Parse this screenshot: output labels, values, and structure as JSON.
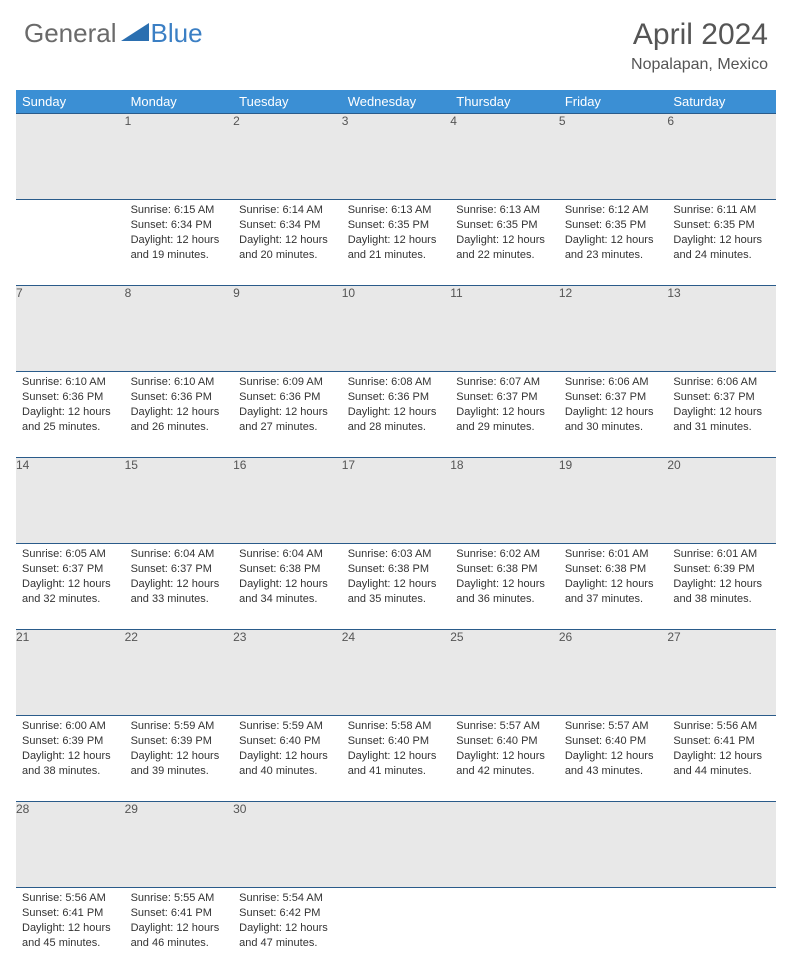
{
  "brand": {
    "part1": "General",
    "part2": "Blue",
    "triangle_color": "#2b6fb0"
  },
  "title": "April 2024",
  "location": "Nopalapan, Mexico",
  "header_bg": "#3b8fd4",
  "header_text": "#ffffff",
  "daynum_bg": "#e8e8e8",
  "border_color": "#2a5b8a",
  "body_text": "#333333",
  "columns": [
    "Sunday",
    "Monday",
    "Tuesday",
    "Wednesday",
    "Thursday",
    "Friday",
    "Saturday"
  ],
  "weeks": [
    [
      null,
      {
        "n": "1",
        "sr": "6:15 AM",
        "ss": "6:34 PM",
        "dl": "12 hours and 19 minutes."
      },
      {
        "n": "2",
        "sr": "6:14 AM",
        "ss": "6:34 PM",
        "dl": "12 hours and 20 minutes."
      },
      {
        "n": "3",
        "sr": "6:13 AM",
        "ss": "6:35 PM",
        "dl": "12 hours and 21 minutes."
      },
      {
        "n": "4",
        "sr": "6:13 AM",
        "ss": "6:35 PM",
        "dl": "12 hours and 22 minutes."
      },
      {
        "n": "5",
        "sr": "6:12 AM",
        "ss": "6:35 PM",
        "dl": "12 hours and 23 minutes."
      },
      {
        "n": "6",
        "sr": "6:11 AM",
        "ss": "6:35 PM",
        "dl": "12 hours and 24 minutes."
      }
    ],
    [
      {
        "n": "7",
        "sr": "6:10 AM",
        "ss": "6:36 PM",
        "dl": "12 hours and 25 minutes."
      },
      {
        "n": "8",
        "sr": "6:10 AM",
        "ss": "6:36 PM",
        "dl": "12 hours and 26 minutes."
      },
      {
        "n": "9",
        "sr": "6:09 AM",
        "ss": "6:36 PM",
        "dl": "12 hours and 27 minutes."
      },
      {
        "n": "10",
        "sr": "6:08 AM",
        "ss": "6:36 PM",
        "dl": "12 hours and 28 minutes."
      },
      {
        "n": "11",
        "sr": "6:07 AM",
        "ss": "6:37 PM",
        "dl": "12 hours and 29 minutes."
      },
      {
        "n": "12",
        "sr": "6:06 AM",
        "ss": "6:37 PM",
        "dl": "12 hours and 30 minutes."
      },
      {
        "n": "13",
        "sr": "6:06 AM",
        "ss": "6:37 PM",
        "dl": "12 hours and 31 minutes."
      }
    ],
    [
      {
        "n": "14",
        "sr": "6:05 AM",
        "ss": "6:37 PM",
        "dl": "12 hours and 32 minutes."
      },
      {
        "n": "15",
        "sr": "6:04 AM",
        "ss": "6:37 PM",
        "dl": "12 hours and 33 minutes."
      },
      {
        "n": "16",
        "sr": "6:04 AM",
        "ss": "6:38 PM",
        "dl": "12 hours and 34 minutes."
      },
      {
        "n": "17",
        "sr": "6:03 AM",
        "ss": "6:38 PM",
        "dl": "12 hours and 35 minutes."
      },
      {
        "n": "18",
        "sr": "6:02 AM",
        "ss": "6:38 PM",
        "dl": "12 hours and 36 minutes."
      },
      {
        "n": "19",
        "sr": "6:01 AM",
        "ss": "6:38 PM",
        "dl": "12 hours and 37 minutes."
      },
      {
        "n": "20",
        "sr": "6:01 AM",
        "ss": "6:39 PM",
        "dl": "12 hours and 38 minutes."
      }
    ],
    [
      {
        "n": "21",
        "sr": "6:00 AM",
        "ss": "6:39 PM",
        "dl": "12 hours and 38 minutes."
      },
      {
        "n": "22",
        "sr": "5:59 AM",
        "ss": "6:39 PM",
        "dl": "12 hours and 39 minutes."
      },
      {
        "n": "23",
        "sr": "5:59 AM",
        "ss": "6:40 PM",
        "dl": "12 hours and 40 minutes."
      },
      {
        "n": "24",
        "sr": "5:58 AM",
        "ss": "6:40 PM",
        "dl": "12 hours and 41 minutes."
      },
      {
        "n": "25",
        "sr": "5:57 AM",
        "ss": "6:40 PM",
        "dl": "12 hours and 42 minutes."
      },
      {
        "n": "26",
        "sr": "5:57 AM",
        "ss": "6:40 PM",
        "dl": "12 hours and 43 minutes."
      },
      {
        "n": "27",
        "sr": "5:56 AM",
        "ss": "6:41 PM",
        "dl": "12 hours and 44 minutes."
      }
    ],
    [
      {
        "n": "28",
        "sr": "5:56 AM",
        "ss": "6:41 PM",
        "dl": "12 hours and 45 minutes."
      },
      {
        "n": "29",
        "sr": "5:55 AM",
        "ss": "6:41 PM",
        "dl": "12 hours and 46 minutes."
      },
      {
        "n": "30",
        "sr": "5:54 AM",
        "ss": "6:42 PM",
        "dl": "12 hours and 47 minutes."
      },
      null,
      null,
      null,
      null
    ]
  ],
  "labels": {
    "sunrise": "Sunrise:",
    "sunset": "Sunset:",
    "daylight": "Daylight:"
  }
}
